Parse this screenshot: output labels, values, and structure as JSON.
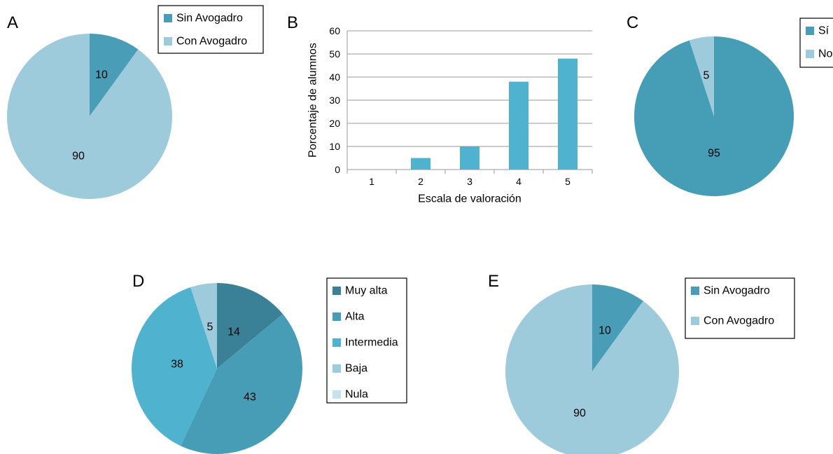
{
  "chart_data": [
    {
      "panel": "A",
      "type": "pie",
      "labels": [
        "Sin Avogadro",
        "Con Avogadro"
      ],
      "values": [
        10,
        90
      ],
      "value_labels": [
        "10",
        "90"
      ],
      "colors": [
        "#4a9db7",
        "#9ecbdc"
      ],
      "legend": "top-right"
    },
    {
      "panel": "B",
      "type": "bar",
      "categories": [
        "1",
        "2",
        "3",
        "4",
        "5"
      ],
      "values": [
        0,
        5,
        10,
        38,
        48
      ],
      "xlabel": "Escala de valoración",
      "ylabel": "Porcentaje de alumnos",
      "ylim": [
        0,
        60
      ],
      "yticks": [
        "0",
        "10",
        "20",
        "30",
        "40",
        "50",
        "60"
      ],
      "grid": true,
      "color": "#4fb3cf"
    },
    {
      "panel": "C",
      "type": "pie",
      "labels": [
        "Sí",
        "No"
      ],
      "values": [
        95,
        5
      ],
      "value_labels": [
        "95",
        "5"
      ],
      "colors": [
        "#469db6",
        "#9ecbdc"
      ],
      "legend": "top-right"
    },
    {
      "panel": "D",
      "type": "pie",
      "labels": [
        "Muy alta",
        "Alta",
        "Intermedia",
        "Baja",
        "Nula"
      ],
      "values": [
        14,
        43,
        38,
        5,
        0
      ],
      "value_labels": [
        "14",
        "43",
        "38",
        "5",
        ""
      ],
      "colors": [
        "#3a8097",
        "#479db6",
        "#4fb3cf",
        "#9ecbdc",
        "#c4e3ec"
      ],
      "legend": "right"
    },
    {
      "panel": "E",
      "type": "pie",
      "labels": [
        "Sin Avogadro",
        "Con Avogadro"
      ],
      "values": [
        10,
        90
      ],
      "value_labels": [
        "10",
        "90"
      ],
      "colors": [
        "#4a9db7",
        "#9ecbdc"
      ],
      "legend": "top-right"
    }
  ]
}
